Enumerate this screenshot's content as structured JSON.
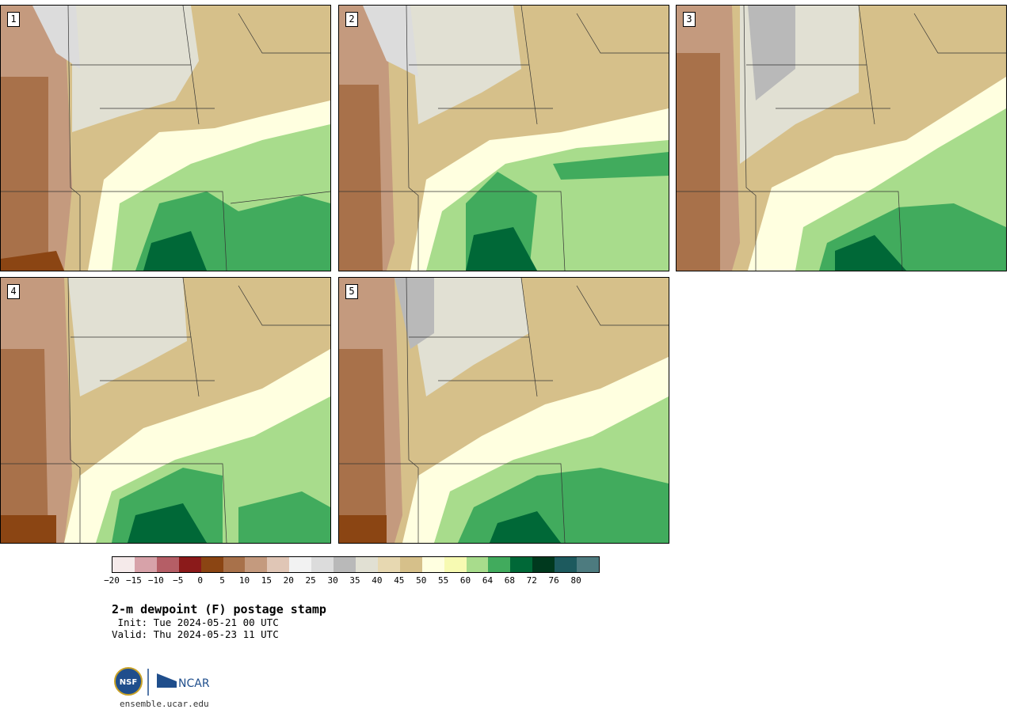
{
  "panels": [
    {
      "label": "1"
    },
    {
      "label": "2"
    },
    {
      "label": "3"
    },
    {
      "label": "4"
    },
    {
      "label": "5"
    }
  ],
  "colorbar": {
    "colors": [
      "#f5eaea",
      "#d7a2a9",
      "#b55e66",
      "#8b1a1a",
      "#8b4513",
      "#a8714a",
      "#c49a7e",
      "#e0c6b6",
      "#f2f2f2",
      "#dcdcdc",
      "#b9b9b9",
      "#e1e0d3",
      "#e7d8b1",
      "#d6c08a",
      "#ffffe0",
      "#f7fab2",
      "#a8dc8c",
      "#41ab5d",
      "#006837",
      "#00391e",
      "#1d5a5e",
      "#4d7b7f"
    ],
    "ticks": [
      "−20",
      "−15",
      "−10",
      "−5",
      "0",
      "5",
      "10",
      "15",
      "20",
      "25",
      "30",
      "35",
      "40",
      "45",
      "50",
      "55",
      "60",
      "64",
      "68",
      "72",
      "76",
      "80"
    ]
  },
  "title": "2-m dewpoint (F) postage stamp",
  "init": " Init: Tue 2024-05-21 00 UTC",
  "valid": "Valid: Thu 2024-05-23 11 UTC",
  "logos": {
    "nsf": "NSF",
    "ncar": "NCAR"
  },
  "site": "ensemble.ucar.edu"
}
